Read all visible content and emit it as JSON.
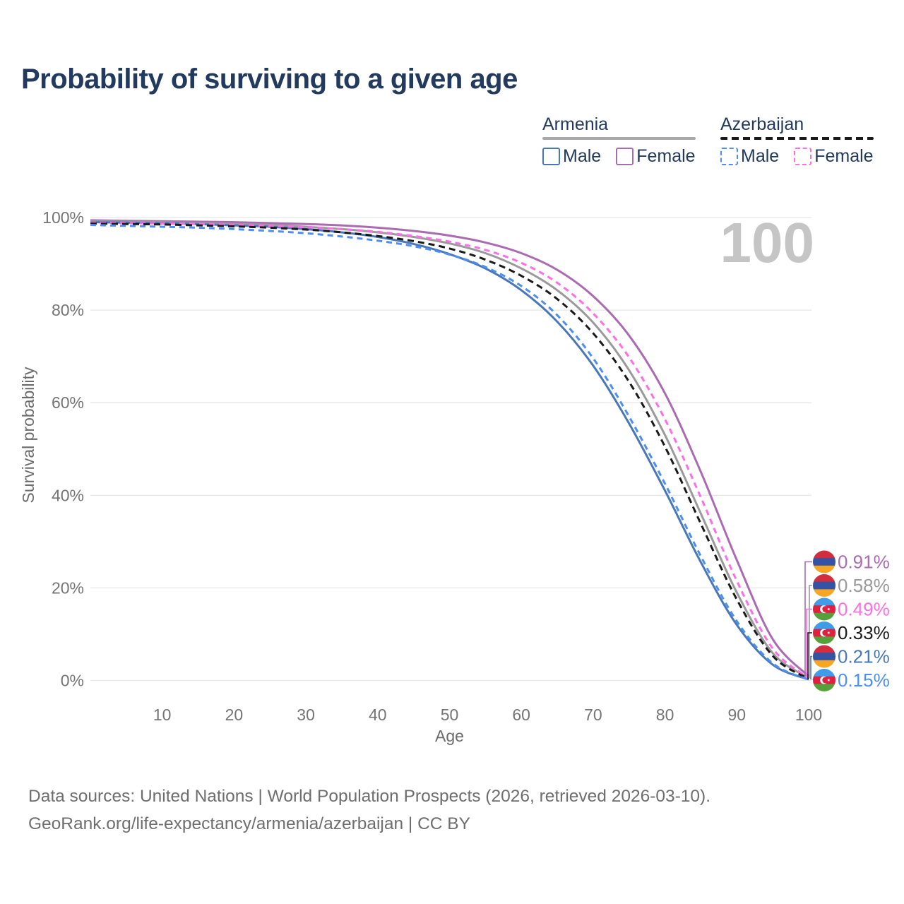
{
  "title": "Probability of surviving to a given age",
  "watermark": "100",
  "legend": {
    "groups": [
      {
        "country": "Armenia",
        "line_style": "solid",
        "underline_color": "#a8a8a8",
        "items": [
          {
            "label": "Male",
            "color": "#4878b8",
            "dashed": false
          },
          {
            "label": "Female",
            "color": "#ab6bb3",
            "dashed": false
          }
        ]
      },
      {
        "country": "Azerbaijan",
        "line_style": "dashed",
        "underline_color": "#1a1a1a",
        "items": [
          {
            "label": "Male",
            "color": "#4d8ef5",
            "dashed": true
          },
          {
            "label": "Female",
            "color": "#ff6ee6",
            "dashed": true
          }
        ]
      }
    ]
  },
  "chart_data": {
    "type": "line",
    "title": "Probability of surviving to a given age",
    "xlabel": "Age",
    "ylabel": "Survival probability",
    "xlim": [
      0,
      100
    ],
    "ylim": [
      0,
      100
    ],
    "grid": "horizontal-only",
    "x_ticks": [
      10,
      20,
      30,
      40,
      50,
      60,
      70,
      80,
      90,
      100
    ],
    "y_ticks": [
      0,
      20,
      40,
      60,
      80,
      100
    ],
    "y_tick_labels": [
      "0%",
      "20%",
      "40%",
      "60%",
      "80%",
      "100%"
    ],
    "x": [
      0,
      5,
      10,
      15,
      20,
      25,
      30,
      35,
      40,
      45,
      50,
      55,
      60,
      65,
      70,
      75,
      80,
      85,
      90,
      95,
      100
    ],
    "series": [
      {
        "name": "Armenia Female",
        "country": "Armenia",
        "sex": "Female",
        "color": "#ab6bb3",
        "dash": null,
        "values": [
          99.4,
          99.3,
          99.2,
          99.1,
          99.0,
          98.8,
          98.6,
          98.3,
          97.8,
          97.1,
          96.1,
          94.6,
          92.3,
          88.7,
          83.0,
          74.5,
          62.0,
          45.0,
          26.0,
          8.9,
          0.91
        ]
      },
      {
        "name": "Armenia Total",
        "country": "Armenia",
        "sex": "Both",
        "color": "#9a9a9a",
        "dash": null,
        "values": [
          99.2,
          99.1,
          99.0,
          98.8,
          98.6,
          98.4,
          98.0,
          97.5,
          96.8,
          95.8,
          94.4,
          92.3,
          89.0,
          84.3,
          77.3,
          67.0,
          53.0,
          36.0,
          19.0,
          5.9,
          0.58
        ]
      },
      {
        "name": "Armenia Male",
        "country": "Armenia",
        "sex": "Male",
        "color": "#4878b8",
        "dash": null,
        "values": [
          99.0,
          98.9,
          98.8,
          98.6,
          98.3,
          98.0,
          97.5,
          96.8,
          95.8,
          94.3,
          92.1,
          89.0,
          84.3,
          77.5,
          68.0,
          55.5,
          41.0,
          25.5,
          12.0,
          3.4,
          0.21
        ]
      },
      {
        "name": "Azerbaijan Female",
        "country": "Azerbaijan",
        "sex": "Female",
        "color": "#ff6ee6",
        "dash": "8 6",
        "values": [
          98.9,
          98.8,
          98.7,
          98.6,
          98.4,
          98.2,
          97.9,
          97.5,
          96.9,
          96.0,
          94.8,
          93.0,
          90.2,
          85.9,
          79.3,
          69.8,
          56.4,
          39.5,
          21.5,
          6.9,
          0.49
        ]
      },
      {
        "name": "Azerbaijan Total",
        "country": "Azerbaijan",
        "sex": "Both",
        "color": "#1a1a1a",
        "dash": "9 6",
        "values": [
          98.7,
          98.6,
          98.5,
          98.3,
          98.1,
          97.8,
          97.4,
          96.8,
          96.0,
          94.9,
          93.3,
          90.9,
          87.4,
          82.4,
          75.0,
          64.5,
          50.5,
          33.8,
          17.5,
          5.3,
          0.33
        ]
      },
      {
        "name": "Azerbaijan Male",
        "country": "Azerbaijan",
        "sex": "Male",
        "color": "#4d8ef5",
        "dash": "8 6",
        "values": [
          98.4,
          98.2,
          98.0,
          97.8,
          97.5,
          97.1,
          96.6,
          95.9,
          95.0,
          93.8,
          92.0,
          89.3,
          85.2,
          78.9,
          69.6,
          57.0,
          42.5,
          26.8,
          12.8,
          3.7,
          0.15
        ]
      }
    ],
    "end_labels": [
      {
        "text": "0.91%",
        "color": "#ab6bb3",
        "flag": "armenia",
        "series": 0
      },
      {
        "text": "0.58%",
        "color": "#9a9a9a",
        "flag": "armenia",
        "series": 1
      },
      {
        "text": "0.49%",
        "color": "#ff6ee6",
        "flag": "azerbaijan",
        "series": 3
      },
      {
        "text": "0.33%",
        "color": "#1a1a1a",
        "flag": "azerbaijan",
        "series": 4
      },
      {
        "text": "0.21%",
        "color": "#4878b8",
        "flag": "armenia",
        "series": 2
      },
      {
        "text": "0.15%",
        "color": "#4d8ef5",
        "flag": "azerbaijan",
        "series": 5
      }
    ],
    "flags": {
      "armenia": [
        "#d12d3e",
        "#3553a4",
        "#f5a623"
      ],
      "azerbaijan": [
        "#3f9ce8",
        "#e11f3f",
        "#55a03a"
      ]
    },
    "legend_position": "top-right"
  },
  "footer": {
    "line1": "Data sources: United Nations | World Population Prospects (2026, retrieved 2026-03-10).",
    "line2": "GeoRank.org/life-expectancy/armenia/azerbaijan | CC BY"
  }
}
